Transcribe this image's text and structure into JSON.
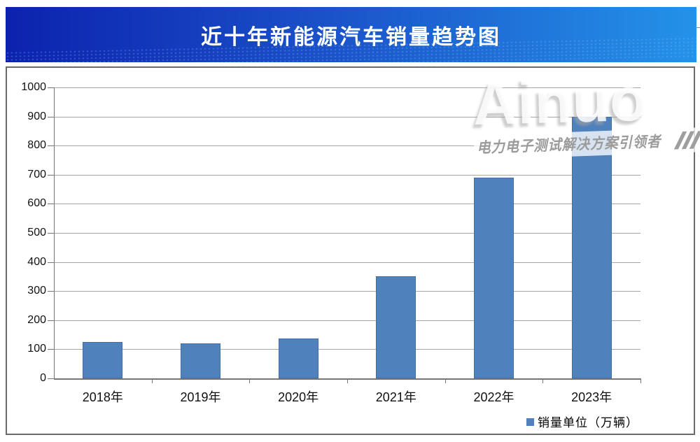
{
  "banner": {
    "title": "近十年新能源汽车销量趋势图"
  },
  "watermark": {
    "brand": "Ainuo",
    "tagline": "电力电子测试解决方案引领者"
  },
  "legend": {
    "label": "销量单位（万辆）"
  },
  "chart_data": {
    "type": "bar",
    "title": "近十年新能源汽车销量趋势图",
    "categories": [
      "2018年",
      "2019年",
      "2020年",
      "2021年",
      "2022年",
      "2023年"
    ],
    "values": [
      125,
      120,
      137,
      352,
      690,
      900
    ],
    "series": [
      {
        "name": "销量单位（万辆）",
        "values": [
          125,
          120,
          137,
          352,
          690,
          900
        ]
      }
    ],
    "xlabel": "",
    "ylabel": "",
    "ylim": [
      0,
      1000
    ],
    "ytick_step": 100,
    "grid": true,
    "legend_position": "bottom-right",
    "bar_color": "#4f81bd"
  },
  "colors": {
    "bar": "#4f81bd",
    "banner_gradient_left": "#0c22ae",
    "banner_gradient_right": "#2492e8",
    "banner_text": "#ffffff",
    "gridline": "#a6a6a6",
    "axis": "#767676",
    "panel_border": "#6a6a6a",
    "watermark_text": "#9b9b9b"
  }
}
